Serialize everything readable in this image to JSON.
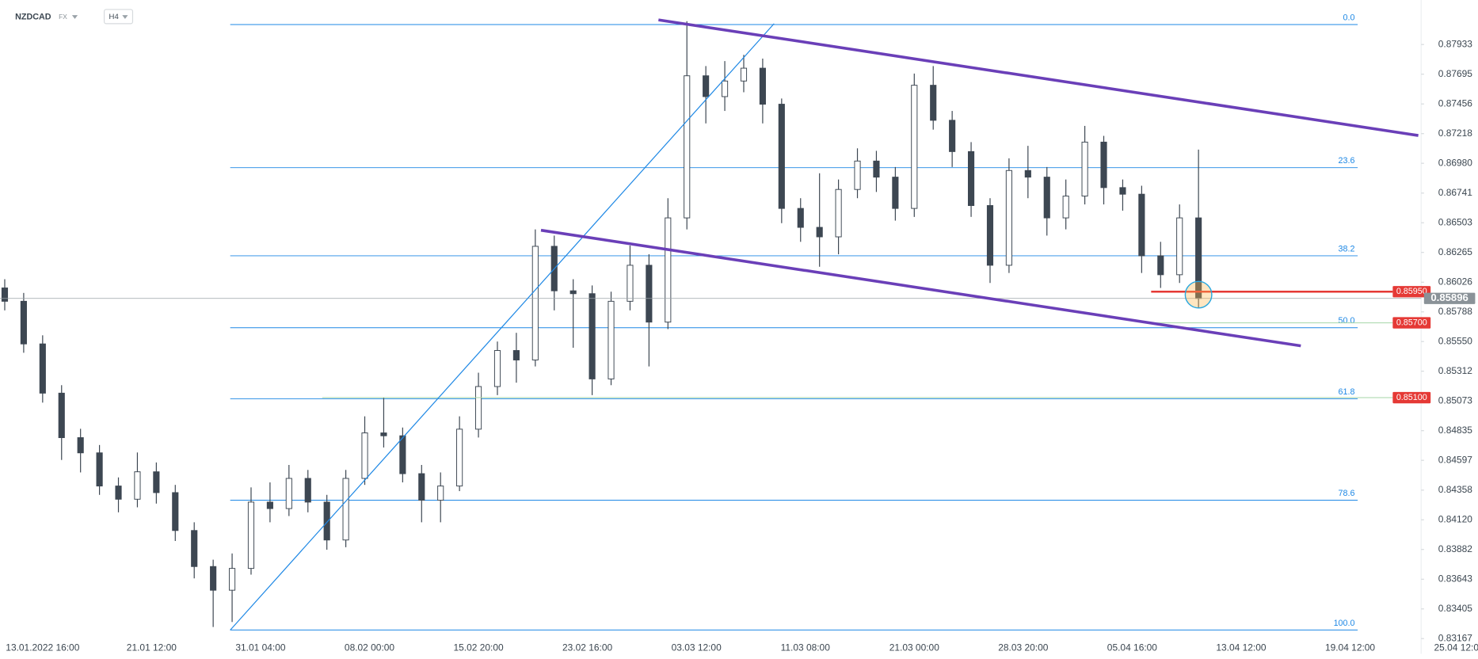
{
  "chart_data": {
    "type": "candlestick",
    "title": "NZDCAD",
    "market": "FX",
    "timeframe": "H4",
    "up_color": "#ffffff",
    "down_color": "#3d4752",
    "wick_color": "#3d4752",
    "open": [
      0.8598,
      0.85873,
      0.85531,
      0.85136,
      0.84779,
      0.84657,
      0.84391,
      0.84285,
      0.84505,
      0.84338,
      0.84034,
      0.83745,
      0.83555,
      0.8373,
      0.84262,
      0.8421,
      0.84452,
      0.84262,
      0.83958,
      0.84452,
      0.84817,
      0.84794,
      0.8449,
      0.84277,
      0.84391,
      0.84847,
      0.85189,
      0.85478,
      0.85402,
      0.86314,
      0.85957,
      0.85934,
      0.8525,
      0.85873,
      0.86162,
      0.85706,
      0.86542,
      0.87682,
      0.87515,
      0.8764,
      0.87743,
      0.87454,
      0.86618,
      0.86466,
      0.8639,
      0.8677,
      0.86998,
      0.86869,
      0.86618,
      0.87606,
      0.87325,
      0.87074,
      0.86641,
      0.86162,
      0.86922,
      0.86869,
      0.86542,
      0.86717,
      0.8715,
      0.86785,
      0.86732,
      0.86238,
      0.86086,
      0.86542
    ],
    "high": [
      0.8605,
      0.8594,
      0.856,
      0.852,
      0.8485,
      0.8472,
      0.8446,
      0.8466,
      0.8458,
      0.844,
      0.841,
      0.838,
      0.8385,
      0.8438,
      0.8442,
      0.8456,
      0.8452,
      0.8432,
      0.8452,
      0.8495,
      0.851,
      0.8486,
      0.8456,
      0.845,
      0.8495,
      0.853,
      0.8555,
      0.8562,
      0.8645,
      0.864,
      0.8605,
      0.86,
      0.8595,
      0.8632,
      0.8625,
      0.867,
      0.8812,
      0.8776,
      0.878,
      0.8785,
      0.8782,
      0.875,
      0.867,
      0.869,
      0.8685,
      0.871,
      0.8708,
      0.8695,
      0.877,
      0.8776,
      0.874,
      0.8715,
      0.867,
      0.8702,
      0.8712,
      0.8695,
      0.8685,
      0.8728,
      0.872,
      0.8685,
      0.868,
      0.8635,
      0.8665,
      0.8709
    ],
    "low": [
      0.858,
      0.8546,
      0.8506,
      0.846,
      0.845,
      0.8432,
      0.8418,
      0.8422,
      0.8425,
      0.8395,
      0.8365,
      0.8326,
      0.833,
      0.8368,
      0.841,
      0.8415,
      0.8418,
      0.8388,
      0.839,
      0.844,
      0.847,
      0.8442,
      0.841,
      0.841,
      0.8435,
      0.8478,
      0.8512,
      0.8522,
      0.8535,
      0.858,
      0.855,
      0.8512,
      0.852,
      0.858,
      0.8535,
      0.8565,
      0.8645,
      0.873,
      0.874,
      0.8755,
      0.873,
      0.865,
      0.8635,
      0.8615,
      0.8625,
      0.867,
      0.8675,
      0.8652,
      0.8655,
      0.8725,
      0.8695,
      0.8655,
      0.8602,
      0.861,
      0.867,
      0.864,
      0.8645,
      0.8665,
      0.8665,
      0.866,
      0.861,
      0.8598,
      0.8602,
      0.8582
    ],
    "close": [
      0.85873,
      0.85531,
      0.85136,
      0.84779,
      0.84657,
      0.84391,
      0.84285,
      0.84505,
      0.84338,
      0.84034,
      0.83745,
      0.83555,
      0.8373,
      0.84262,
      0.8421,
      0.84452,
      0.84262,
      0.83958,
      0.84452,
      0.84817,
      0.84794,
      0.8449,
      0.84277,
      0.84391,
      0.84847,
      0.85189,
      0.85478,
      0.85402,
      0.86314,
      0.85957,
      0.85934,
      0.8525,
      0.85873,
      0.86162,
      0.85706,
      0.86542,
      0.87682,
      0.87515,
      0.8764,
      0.87743,
      0.87454,
      0.86618,
      0.86466,
      0.8639,
      0.8677,
      0.86998,
      0.86869,
      0.86618,
      0.87606,
      0.87325,
      0.87074,
      0.86641,
      0.86162,
      0.86922,
      0.86869,
      0.86542,
      0.86717,
      0.8715,
      0.86785,
      0.86732,
      0.86238,
      0.86086,
      0.86542,
      0.85896
    ],
    "ylim": [
      0.83045,
      0.8829
    ],
    "yticks": [
      0.87933,
      0.87695,
      0.87456,
      0.87218,
      {
        "value": 0.8698,
        "label": "0.86980"
      },
      0.86741,
      0.86503,
      0.86265,
      0.86026,
      0.85788,
      {
        "value": 0.8555,
        "label": "0.85550"
      },
      0.85312,
      0.85073,
      0.84835,
      0.84597,
      0.84358,
      {
        "value": 0.8412,
        "label": "0.84120"
      },
      0.83882,
      0.83643,
      0.83405,
      0.83167
    ],
    "xticks": [
      "13.01.2022  16:00",
      "21.01  12:00",
      "31.01  04:00",
      "08.02  00:00",
      "15.02  20:00",
      "23.02  16:00",
      "03.03  12:00",
      "11.03  08:00",
      "21.03  00:00",
      "28.03  20:00",
      "05.04  16:00",
      "13.04  12:00",
      "19.04  12:00",
      "25.04  12:00"
    ],
    "fib_color": "#1e88e5",
    "fib_levels": [
      {
        "label": "0.0",
        "value": 0.88093
      },
      {
        "label": "23.6",
        "value": 0.86945
      },
      {
        "label": "38.2",
        "value": 0.86238
      },
      {
        "label": "50.0",
        "value": 0.85661
      },
      {
        "label": "61.8",
        "value": 0.85091
      },
      {
        "label": "78.6",
        "value": 0.84277
      },
      {
        "label": "100.0",
        "value": 0.83236
      }
    ],
    "price_labels": [
      {
        "label": "0.85950",
        "value": 0.8595,
        "color": "#e53935"
      },
      {
        "label": "0.85896",
        "value": 0.85896,
        "color": "#8a9298"
      },
      {
        "label": "0.85700",
        "value": 0.857,
        "color": "#e53935"
      },
      {
        "label": "0.85100",
        "value": 0.851,
        "color": "#e53935"
      }
    ]
  }
}
